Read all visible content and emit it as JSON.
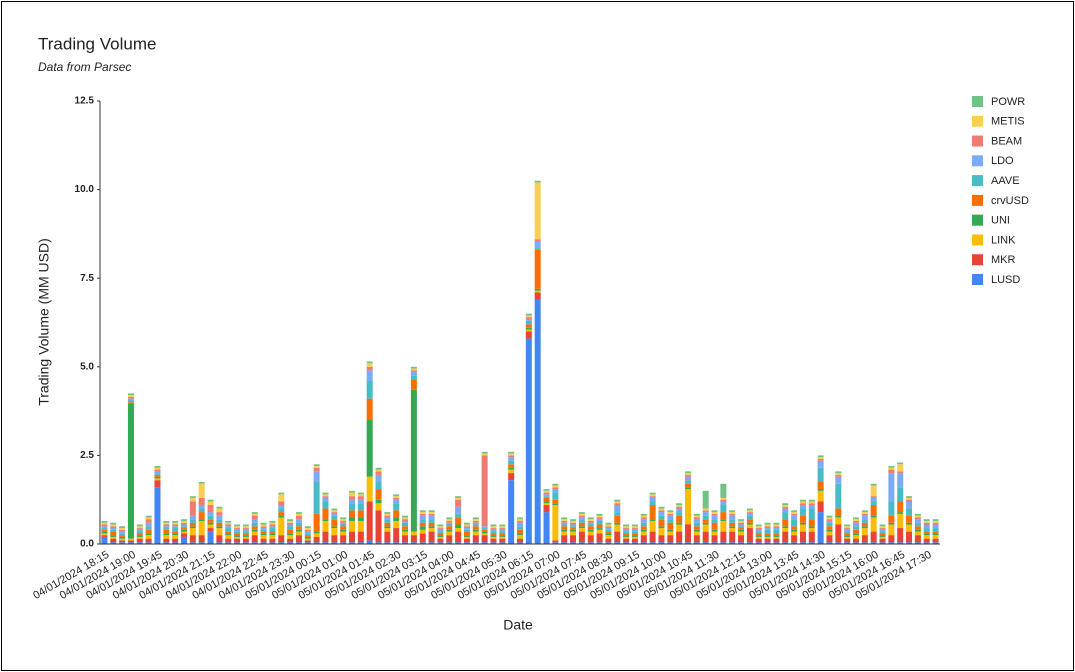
{
  "chart_data": {
    "type": "stacked-bar",
    "title": "Trading Volume",
    "subtitle": "Data from Parsec",
    "x_label": "Date",
    "y_label": "Trading Volume (MM USD)",
    "ylim": [
      0,
      12.5
    ],
    "yticks": [
      {
        "value": 0,
        "label": "0.0"
      },
      2.5,
      {
        "value": 5,
        "label": "5.0"
      },
      7.5,
      {
        "value": 10,
        "label": "10.0"
      },
      12.5
    ],
    "grid": false,
    "legend": "right",
    "categories": [
      "04/01/2024 18:15",
      null,
      null,
      "04/01/2024 19:00",
      null,
      null,
      "04/01/2024 19:45",
      null,
      null,
      "04/01/2024 20:30",
      null,
      null,
      "04/01/2024 21:15",
      null,
      null,
      "04/01/2024 22:00",
      null,
      null,
      "04/01/2024 22:45",
      null,
      null,
      "04/01/2024 23:30",
      null,
      null,
      "05/01/2024 00:15",
      null,
      null,
      "05/01/2024 01:00",
      null,
      null,
      "05/01/2024 01:45",
      null,
      null,
      "05/01/2024 02:30",
      null,
      null,
      "05/01/2024 03:15",
      null,
      null,
      "05/01/2024 04:00",
      null,
      null,
      "05/01/2024 04:45",
      null,
      null,
      "05/01/2024 05:30",
      null,
      null,
      "05/01/2024 06:15",
      null,
      null,
      "05/01/2024 07:00",
      null,
      null,
      "05/01/2024 07:45",
      null,
      null,
      "05/01/2024 08:30",
      null,
      null,
      "05/01/2024 09:15",
      null,
      null,
      "05/01/2024 10:00",
      null,
      null,
      "05/01/2024 10:45",
      null,
      null,
      "05/01/2024 11:30",
      null,
      null,
      "05/01/2024 12:15",
      null,
      null,
      "05/01/2024 13:00",
      null,
      null,
      "05/01/2024 13:45",
      null,
      null,
      "05/01/2024 14:30",
      null,
      null,
      "05/01/2024 15:15",
      null,
      null,
      "05/01/2024 16:00",
      null,
      null,
      "05/01/2024 16:45",
      null,
      null,
      "05/01/2024 17:30",
      null
    ],
    "series": [
      {
        "name": "LUSD",
        "color": "#4285f4",
        "values": [
          0.2,
          0.05,
          0.05,
          0.05,
          0.05,
          0.05,
          1.6,
          0.05,
          0.05,
          0.2,
          0.05,
          0.05,
          0.35,
          0.05,
          0.05,
          0.05,
          0.05,
          0.05,
          0.05,
          0.05,
          0.05,
          0.05,
          0.05,
          0.05,
          0.05,
          0.05,
          0.05,
          0.05,
          0.05,
          0.05,
          0.1,
          0.05,
          0.05,
          0.05,
          0.05,
          0.05,
          0.05,
          0.05,
          0.05,
          0.05,
          0.05,
          0.05,
          0.05,
          0.05,
          0.05,
          0.05,
          1.8,
          0.05,
          5.8,
          6.9,
          0.9,
          0.05,
          0.05,
          0.05,
          0.05,
          0.05,
          0.05,
          0.05,
          0.05,
          0.05,
          0.05,
          0.05,
          0.05,
          0.05,
          0.05,
          0.05,
          0.05,
          0.05,
          0.05,
          0.05,
          0.05,
          0.05,
          0.05,
          0.05,
          0.05,
          0.05,
          0.05,
          0.05,
          0.05,
          0.05,
          0.05,
          0.9,
          0.05,
          0.05,
          0.05,
          0.05,
          0.05,
          0.05,
          0.05,
          0.05,
          0.05,
          0.05,
          0.05,
          0.05,
          0.05
        ]
      },
      {
        "name": "MKR",
        "color": "#ea4335",
        "values": [
          0.05,
          0.1,
          0.05,
          0.05,
          0.1,
          0.1,
          0.2,
          0.1,
          0.1,
          0.1,
          0.2,
          0.2,
          0.1,
          0.2,
          0.1,
          0.1,
          0.1,
          0.2,
          0.1,
          0.1,
          0.2,
          0.1,
          0.2,
          0.05,
          0.15,
          0.3,
          0.2,
          0.2,
          0.3,
          0.3,
          1.1,
          0.9,
          0.3,
          0.4,
          0.2,
          0.2,
          0.25,
          0.3,
          0.1,
          0.2,
          0.3,
          0.1,
          0.2,
          0.2,
          0.1,
          0.1,
          0.2,
          0.1,
          0.2,
          0.2,
          0.2,
          0.05,
          0.2,
          0.2,
          0.3,
          0.2,
          0.25,
          0.1,
          0.3,
          0.1,
          0.1,
          0.2,
          0.3,
          0.2,
          0.2,
          0.3,
          0.5,
          0.2,
          0.3,
          0.2,
          0.3,
          0.3,
          0.2,
          0.4,
          0.1,
          0.1,
          0.1,
          0.3,
          0.2,
          0.3,
          0.3,
          0.3,
          0.2,
          0.5,
          0.1,
          0.1,
          0.2,
          0.3,
          0.1,
          0.2,
          0.4,
          0.3,
          0.2,
          0.1,
          0.1
        ]
      },
      {
        "name": "LINK",
        "color": "#fbbc04",
        "values": [
          0.05,
          0.05,
          0.05,
          0.05,
          0.05,
          0.1,
          0.05,
          0.1,
          0.1,
          0.05,
          0.2,
          0.4,
          0.1,
          0.2,
          0.1,
          0.05,
          0.05,
          0.1,
          0.1,
          0.1,
          0.5,
          0.1,
          0.1,
          0.05,
          0.1,
          0.3,
          0.2,
          0.1,
          0.3,
          0.3,
          0.7,
          0.2,
          0.1,
          0.2,
          0.1,
          0.1,
          0.1,
          0.1,
          0.05,
          0.1,
          0.1,
          0.05,
          0.1,
          0.05,
          0.05,
          0.05,
          0.1,
          0.1,
          0.05,
          0.05,
          0.05,
          1.0,
          0.1,
          0.1,
          0.1,
          0.1,
          0.1,
          0.1,
          0.2,
          0.05,
          0.05,
          0.1,
          0.3,
          0.2,
          0.1,
          0.2,
          1.0,
          0.1,
          0.2,
          0.1,
          0.3,
          0.1,
          0.1,
          0.1,
          0.05,
          0.05,
          0.05,
          0.1,
          0.1,
          0.2,
          0.1,
          0.3,
          0.1,
          0.2,
          0.05,
          0.1,
          0.2,
          0.4,
          0.05,
          0.3,
          0.4,
          0.2,
          0.1,
          0.1,
          0.1
        ]
      },
      {
        "name": "UNI",
        "color": "#34a853",
        "values": [
          0.05,
          0.05,
          0.05,
          3.8,
          0.05,
          0.05,
          0.05,
          0.05,
          0.05,
          0.05,
          0.05,
          0.05,
          0.05,
          0.05,
          0.05,
          0.05,
          0.05,
          0.05,
          0.05,
          0.05,
          0.05,
          0.05,
          0.05,
          0.05,
          0.05,
          0.05,
          0.05,
          0.05,
          0.1,
          0.1,
          1.6,
          0.1,
          0.05,
          0.1,
          0.05,
          4.0,
          0.1,
          0.05,
          0.05,
          0.05,
          0.1,
          0.05,
          0.05,
          0.05,
          0.05,
          0.05,
          0.05,
          0.05,
          0.05,
          0.05,
          0.05,
          0.05,
          0.05,
          0.05,
          0.05,
          0.05,
          0.05,
          0.05,
          0.05,
          0.05,
          0.05,
          0.05,
          0.05,
          0.05,
          0.05,
          0.05,
          0.05,
          0.05,
          0.05,
          0.05,
          0.05,
          0.05,
          0.05,
          0.05,
          0.05,
          0.05,
          0.05,
          0.05,
          0.05,
          0.05,
          0.05,
          0.05,
          0.05,
          0.05,
          0.05,
          0.05,
          0.05,
          0.05,
          0.05,
          0.05,
          0.05,
          0.05,
          0.05,
          0.05,
          0.05
        ]
      },
      {
        "name": "crvUSD",
        "color": "#ff6d01",
        "values": [
          0.05,
          0.1,
          0.05,
          0.05,
          0.05,
          0.1,
          0.05,
          0.1,
          0.05,
          0.05,
          0.1,
          0.2,
          0.1,
          0.1,
          0.05,
          0.05,
          0.05,
          0.1,
          0.05,
          0.05,
          0.1,
          0.1,
          0.1,
          0.05,
          0.5,
          0.3,
          0.2,
          0.1,
          0.2,
          0.2,
          0.6,
          0.3,
          0.1,
          0.2,
          0.1,
          0.3,
          0.1,
          0.1,
          0.05,
          0.1,
          0.2,
          0.1,
          0.1,
          0.05,
          0.05,
          0.05,
          0.1,
          0.1,
          0.1,
          1.1,
          0.1,
          0.1,
          0.1,
          0.05,
          0.1,
          0.1,
          0.1,
          0.05,
          0.2,
          0.05,
          0.05,
          0.1,
          0.4,
          0.2,
          0.2,
          0.2,
          0.1,
          0.1,
          0.1,
          0.2,
          0.2,
          0.1,
          0.05,
          0.1,
          0.05,
          0.05,
          0.05,
          0.2,
          0.1,
          0.2,
          0.2,
          0.2,
          0.1,
          0.2,
          0.05,
          0.1,
          0.1,
          0.3,
          0.05,
          0.2,
          0.3,
          0.2,
          0.1,
          0.05,
          0.05
        ]
      },
      {
        "name": "AAVE",
        "color": "#46bdc6",
        "values": [
          0.05,
          0.05,
          0.05,
          0.05,
          0.05,
          0.1,
          0.05,
          0.05,
          0.1,
          0.05,
          0.1,
          0.1,
          0.1,
          0.1,
          0.1,
          0.05,
          0.05,
          0.1,
          0.05,
          0.1,
          0.1,
          0.1,
          0.1,
          0.05,
          0.9,
          0.2,
          0.1,
          0.05,
          0.2,
          0.2,
          0.5,
          0.2,
          0.1,
          0.2,
          0.1,
          0.1,
          0.1,
          0.1,
          0.05,
          0.05,
          0.1,
          0.05,
          0.05,
          0.05,
          0.05,
          0.05,
          0.1,
          0.1,
          0.1,
          0.05,
          0.05,
          0.2,
          0.05,
          0.05,
          0.1,
          0.05,
          0.1,
          0.05,
          0.1,
          0.05,
          0.05,
          0.1,
          0.1,
          0.1,
          0.1,
          0.1,
          0.1,
          0.1,
          0.1,
          0.1,
          0.2,
          0.1,
          0.05,
          0.1,
          0.05,
          0.1,
          0.1,
          0.2,
          0.2,
          0.2,
          0.3,
          0.4,
          0.1,
          0.7,
          0.05,
          0.1,
          0.1,
          0.1,
          0.05,
          0.4,
          0.4,
          0.2,
          0.1,
          0.1,
          0.1
        ]
      },
      {
        "name": "LDO",
        "color": "#7baaf7",
        "values": [
          0.05,
          0.05,
          0.05,
          0.05,
          0.05,
          0.1,
          0.05,
          0.05,
          0.05,
          0.05,
          0.1,
          0.1,
          0.1,
          0.1,
          0.05,
          0.05,
          0.05,
          0.1,
          0.05,
          0.05,
          0.1,
          0.05,
          0.1,
          0.05,
          0.3,
          0.1,
          0.05,
          0.05,
          0.1,
          0.1,
          0.3,
          0.2,
          0.05,
          0.1,
          0.05,
          0.1,
          0.1,
          0.1,
          0.05,
          0.05,
          0.2,
          0.05,
          0.05,
          0.05,
          0.05,
          0.05,
          0.1,
          0.1,
          0.05,
          0.2,
          0.05,
          0.1,
          0.05,
          0.05,
          0.05,
          0.05,
          0.05,
          0.05,
          0.2,
          0.05,
          0.05,
          0.1,
          0.1,
          0.1,
          0.1,
          0.1,
          0.1,
          0.1,
          0.1,
          0.1,
          0.1,
          0.1,
          0.05,
          0.05,
          0.05,
          0.05,
          0.05,
          0.1,
          0.1,
          0.1,
          0.1,
          0.2,
          0.05,
          0.2,
          0.05,
          0.1,
          0.1,
          0.1,
          0.05,
          0.8,
          0.4,
          0.2,
          0.1,
          0.1,
          0.1
        ]
      },
      {
        "name": "BEAM",
        "color": "#f07b72",
        "values": [
          0.05,
          0.05,
          0.05,
          0.05,
          0.05,
          0.1,
          0.05,
          0.05,
          0.05,
          0.05,
          0.4,
          0.2,
          0.2,
          0.1,
          0.05,
          0.05,
          0.05,
          0.1,
          0.05,
          0.05,
          0.1,
          0.05,
          0.1,
          0.05,
          0.1,
          0.05,
          0.05,
          0.05,
          0.1,
          0.1,
          0.1,
          0.1,
          0.05,
          0.05,
          0.05,
          0.05,
          0.05,
          0.05,
          0.05,
          0.05,
          0.2,
          0.05,
          0.05,
          2.0,
          0.05,
          0.05,
          0.05,
          0.05,
          0.05,
          0.05,
          0.05,
          0.05,
          0.05,
          0.05,
          0.05,
          0.05,
          0.05,
          0.05,
          0.05,
          0.05,
          0.05,
          0.05,
          0.05,
          0.05,
          0.05,
          0.05,
          0.05,
          0.05,
          0.05,
          0.05,
          0.05,
          0.05,
          0.05,
          0.05,
          0.05,
          0.05,
          0.05,
          0.05,
          0.05,
          0.05,
          0.05,
          0.05,
          0.05,
          0.05,
          0.05,
          0.05,
          0.05,
          0.05,
          0.05,
          0.1,
          0.05,
          0.05,
          0.05,
          0.05,
          0.05
        ]
      },
      {
        "name": "METIS",
        "color": "#fcd04f",
        "values": [
          0.05,
          0.05,
          0.05,
          0.05,
          0.05,
          0.05,
          0.05,
          0.05,
          0.05,
          0.05,
          0.1,
          0.4,
          0.1,
          0.1,
          0.05,
          0.05,
          0.05,
          0.05,
          0.05,
          0.05,
          0.2,
          0.05,
          0.05,
          0.05,
          0.05,
          0.05,
          0.05,
          0.05,
          0.1,
          0.05,
          0.1,
          0.05,
          0.05,
          0.05,
          0.05,
          0.05,
          0.05,
          0.05,
          0.05,
          0.05,
          0.05,
          0.05,
          0.05,
          0.05,
          0.05,
          0.05,
          0.05,
          0.05,
          0.05,
          1.6,
          0.05,
          0.05,
          0.05,
          0.05,
          0.05,
          0.05,
          0.05,
          0.05,
          0.05,
          0.05,
          0.05,
          0.05,
          0.05,
          0.05,
          0.05,
          0.05,
          0.05,
          0.05,
          0.05,
          0.05,
          0.05,
          0.05,
          0.05,
          0.05,
          0.05,
          0.05,
          0.05,
          0.05,
          0.05,
          0.05,
          0.05,
          0.05,
          0.05,
          0.05,
          0.05,
          0.05,
          0.05,
          0.3,
          0.05,
          0.05,
          0.2,
          0.05,
          0.05,
          0.05,
          0.05
        ]
      },
      {
        "name": "POWR",
        "color": "#71c287",
        "values": [
          0.05,
          0.05,
          0.05,
          0.05,
          0.05,
          0.05,
          0.05,
          0.05,
          0.05,
          0.05,
          0.05,
          0.05,
          0.05,
          0.05,
          0.05,
          0.05,
          0.05,
          0.05,
          0.05,
          0.05,
          0.05,
          0.05,
          0.05,
          0.05,
          0.05,
          0.05,
          0.05,
          0.05,
          0.05,
          0.05,
          0.05,
          0.05,
          0.05,
          0.05,
          0.05,
          0.05,
          0.05,
          0.05,
          0.05,
          0.05,
          0.05,
          0.05,
          0.05,
          0.05,
          0.05,
          0.05,
          0.05,
          0.05,
          0.05,
          0.05,
          0.05,
          0.05,
          0.05,
          0.05,
          0.05,
          0.05,
          0.05,
          0.05,
          0.05,
          0.05,
          0.05,
          0.05,
          0.05,
          0.05,
          0.05,
          0.05,
          0.05,
          0.05,
          0.5,
          0.05,
          0.4,
          0.05,
          0.05,
          0.05,
          0.05,
          0.05,
          0.05,
          0.05,
          0.05,
          0.05,
          0.05,
          0.05,
          0.05,
          0.05,
          0.05,
          0.05,
          0.05,
          0.05,
          0.05,
          0.05,
          0.05,
          0.05,
          0.05,
          0.05,
          0.05
        ]
      }
    ]
  }
}
